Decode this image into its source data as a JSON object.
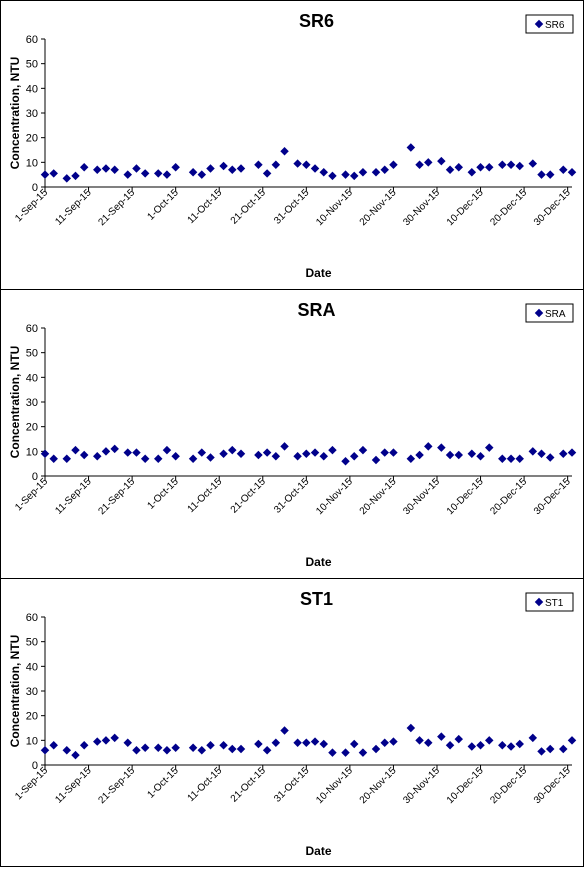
{
  "chart_data": [
    {
      "type": "scatter",
      "title": "SR6",
      "xlabel": "Date",
      "ylabel": "Concentration, NTU",
      "ylim": [
        0,
        60
      ],
      "y_ticks": [
        0,
        10,
        20,
        30,
        40,
        50,
        60
      ],
      "x_ticks": [
        "1-Sep-15",
        "11-Sep-15",
        "21-Sep-15",
        "1-Oct-15",
        "11-Oct-15",
        "21-Oct-15",
        "31-Oct-15",
        "10-Nov-15",
        "20-Nov-15",
        "30-Nov-15",
        "10-Dec-15",
        "20-Dec-15",
        "30-Dec-15"
      ],
      "xlim": [
        "2015-09-01",
        "2015-12-31"
      ],
      "legend": "top-right",
      "grid": false,
      "marker_color": "#00008B",
      "series": [
        {
          "name": "SR6",
          "points": [
            {
              "x": "2015-09-01",
              "y": 5
            },
            {
              "x": "2015-09-03",
              "y": 5.5
            },
            {
              "x": "2015-09-06",
              "y": 3.5
            },
            {
              "x": "2015-09-08",
              "y": 4.5
            },
            {
              "x": "2015-09-10",
              "y": 8
            },
            {
              "x": "2015-09-13",
              "y": 7
            },
            {
              "x": "2015-09-15",
              "y": 7.5
            },
            {
              "x": "2015-09-17",
              "y": 7
            },
            {
              "x": "2015-09-20",
              "y": 5
            },
            {
              "x": "2015-09-22",
              "y": 7.5
            },
            {
              "x": "2015-09-24",
              "y": 5.5
            },
            {
              "x": "2015-09-27",
              "y": 5.5
            },
            {
              "x": "2015-09-29",
              "y": 5
            },
            {
              "x": "2015-10-01",
              "y": 8
            },
            {
              "x": "2015-10-05",
              "y": 6
            },
            {
              "x": "2015-10-07",
              "y": 5
            },
            {
              "x": "2015-10-09",
              "y": 7.5
            },
            {
              "x": "2015-10-12",
              "y": 8.5
            },
            {
              "x": "2015-10-14",
              "y": 7
            },
            {
              "x": "2015-10-16",
              "y": 7.5
            },
            {
              "x": "2015-10-20",
              "y": 9
            },
            {
              "x": "2015-10-22",
              "y": 5.5
            },
            {
              "x": "2015-10-24",
              "y": 9
            },
            {
              "x": "2015-10-26",
              "y": 14.5
            },
            {
              "x": "2015-10-29",
              "y": 9.5
            },
            {
              "x": "2015-10-31",
              "y": 9
            },
            {
              "x": "2015-11-02",
              "y": 7.5
            },
            {
              "x": "2015-11-04",
              "y": 6
            },
            {
              "x": "2015-11-06",
              "y": 4.5
            },
            {
              "x": "2015-11-09",
              "y": 5
            },
            {
              "x": "2015-11-11",
              "y": 4.5
            },
            {
              "x": "2015-11-13",
              "y": 6
            },
            {
              "x": "2015-11-16",
              "y": 6
            },
            {
              "x": "2015-11-18",
              "y": 7
            },
            {
              "x": "2015-11-20",
              "y": 9
            },
            {
              "x": "2015-11-24",
              "y": 16
            },
            {
              "x": "2015-11-26",
              "y": 9
            },
            {
              "x": "2015-11-28",
              "y": 10
            },
            {
              "x": "2015-12-01",
              "y": 10.5
            },
            {
              "x": "2015-12-03",
              "y": 7
            },
            {
              "x": "2015-12-05",
              "y": 8
            },
            {
              "x": "2015-12-08",
              "y": 6
            },
            {
              "x": "2015-12-10",
              "y": 8
            },
            {
              "x": "2015-12-12",
              "y": 8
            },
            {
              "x": "2015-12-15",
              "y": 9
            },
            {
              "x": "2015-12-17",
              "y": 9
            },
            {
              "x": "2015-12-19",
              "y": 8.5
            },
            {
              "x": "2015-12-22",
              "y": 9.5
            },
            {
              "x": "2015-12-24",
              "y": 5
            },
            {
              "x": "2015-12-26",
              "y": 5
            },
            {
              "x": "2015-12-29",
              "y": 7
            },
            {
              "x": "2015-12-31",
              "y": 6
            }
          ]
        }
      ]
    },
    {
      "type": "scatter",
      "title": "SRA",
      "xlabel": "Date",
      "ylabel": "Concentration, NTU",
      "ylim": [
        0,
        60
      ],
      "y_ticks": [
        0,
        10,
        20,
        30,
        40,
        50,
        60
      ],
      "x_ticks": [
        "1-Sep-15",
        "11-Sep-15",
        "21-Sep-15",
        "1-Oct-15",
        "11-Oct-15",
        "21-Oct-15",
        "31-Oct-15",
        "10-Nov-15",
        "20-Nov-15",
        "30-Nov-15",
        "10-Dec-15",
        "20-Dec-15",
        "30-Dec-15"
      ],
      "xlim": [
        "2015-09-01",
        "2015-12-31"
      ],
      "legend": "top-right",
      "grid": false,
      "marker_color": "#00008B",
      "series": [
        {
          "name": "SRA",
          "points": [
            {
              "x": "2015-09-01",
              "y": 9
            },
            {
              "x": "2015-09-03",
              "y": 7
            },
            {
              "x": "2015-09-06",
              "y": 7
            },
            {
              "x": "2015-09-08",
              "y": 10.5
            },
            {
              "x": "2015-09-10",
              "y": 8.5
            },
            {
              "x": "2015-09-13",
              "y": 8
            },
            {
              "x": "2015-09-15",
              "y": 10
            },
            {
              "x": "2015-09-17",
              "y": 11
            },
            {
              "x": "2015-09-20",
              "y": 9.5
            },
            {
              "x": "2015-09-22",
              "y": 9.5
            },
            {
              "x": "2015-09-24",
              "y": 7
            },
            {
              "x": "2015-09-27",
              "y": 7
            },
            {
              "x": "2015-09-29",
              "y": 10.5
            },
            {
              "x": "2015-10-01",
              "y": 8
            },
            {
              "x": "2015-10-05",
              "y": 7
            },
            {
              "x": "2015-10-07",
              "y": 9.5
            },
            {
              "x": "2015-10-09",
              "y": 7.5
            },
            {
              "x": "2015-10-12",
              "y": 9
            },
            {
              "x": "2015-10-14",
              "y": 10.5
            },
            {
              "x": "2015-10-16",
              "y": 9
            },
            {
              "x": "2015-10-20",
              "y": 8.5
            },
            {
              "x": "2015-10-22",
              "y": 9.5
            },
            {
              "x": "2015-10-24",
              "y": 8
            },
            {
              "x": "2015-10-26",
              "y": 12
            },
            {
              "x": "2015-10-29",
              "y": 8
            },
            {
              "x": "2015-10-31",
              "y": 9
            },
            {
              "x": "2015-11-02",
              "y": 9.5
            },
            {
              "x": "2015-11-04",
              "y": 8
            },
            {
              "x": "2015-11-06",
              "y": 10.5
            },
            {
              "x": "2015-11-09",
              "y": 6
            },
            {
              "x": "2015-11-11",
              "y": 8
            },
            {
              "x": "2015-11-13",
              "y": 10.5
            },
            {
              "x": "2015-11-16",
              "y": 6.5
            },
            {
              "x": "2015-11-18",
              "y": 9.5
            },
            {
              "x": "2015-11-20",
              "y": 9.5
            },
            {
              "x": "2015-11-24",
              "y": 7
            },
            {
              "x": "2015-11-26",
              "y": 8.5
            },
            {
              "x": "2015-11-28",
              "y": 12
            },
            {
              "x": "2015-12-01",
              "y": 11.5
            },
            {
              "x": "2015-12-03",
              "y": 8.5
            },
            {
              "x": "2015-12-05",
              "y": 8.5
            },
            {
              "x": "2015-12-08",
              "y": 9
            },
            {
              "x": "2015-12-10",
              "y": 8
            },
            {
              "x": "2015-12-12",
              "y": 11.5
            },
            {
              "x": "2015-12-15",
              "y": 7
            },
            {
              "x": "2015-12-17",
              "y": 7
            },
            {
              "x": "2015-12-19",
              "y": 7
            },
            {
              "x": "2015-12-22",
              "y": 10
            },
            {
              "x": "2015-12-24",
              "y": 9
            },
            {
              "x": "2015-12-26",
              "y": 7.5
            },
            {
              "x": "2015-12-29",
              "y": 9
            },
            {
              "x": "2015-12-31",
              "y": 9.5
            }
          ]
        }
      ]
    },
    {
      "type": "scatter",
      "title": "ST1",
      "xlabel": "Date",
      "ylabel": "Concentration, NTU",
      "ylim": [
        0,
        60
      ],
      "y_ticks": [
        0,
        10,
        20,
        30,
        40,
        50,
        60
      ],
      "x_ticks": [
        "1-Sep-15",
        "11-Sep-15",
        "21-Sep-15",
        "1-Oct-15",
        "11-Oct-15",
        "21-Oct-15",
        "31-Oct-15",
        "10-Nov-15",
        "20-Nov-15",
        "30-Nov-15",
        "10-Dec-15",
        "20-Dec-15",
        "30-Dec-15"
      ],
      "xlim": [
        "2015-09-01",
        "2015-12-31"
      ],
      "legend": "top-right",
      "grid": false,
      "marker_color": "#00008B",
      "series": [
        {
          "name": "ST1",
          "points": [
            {
              "x": "2015-09-01",
              "y": 6
            },
            {
              "x": "2015-09-03",
              "y": 8
            },
            {
              "x": "2015-09-06",
              "y": 6
            },
            {
              "x": "2015-09-08",
              "y": 4
            },
            {
              "x": "2015-09-10",
              "y": 8
            },
            {
              "x": "2015-09-13",
              "y": 9.5
            },
            {
              "x": "2015-09-15",
              "y": 10
            },
            {
              "x": "2015-09-17",
              "y": 11
            },
            {
              "x": "2015-09-20",
              "y": 9
            },
            {
              "x": "2015-09-22",
              "y": 6
            },
            {
              "x": "2015-09-24",
              "y": 7
            },
            {
              "x": "2015-09-27",
              "y": 7
            },
            {
              "x": "2015-09-29",
              "y": 6
            },
            {
              "x": "2015-10-01",
              "y": 7
            },
            {
              "x": "2015-10-05",
              "y": 7
            },
            {
              "x": "2015-10-07",
              "y": 6
            },
            {
              "x": "2015-10-09",
              "y": 8
            },
            {
              "x": "2015-10-12",
              "y": 8
            },
            {
              "x": "2015-10-14",
              "y": 6.5
            },
            {
              "x": "2015-10-16",
              "y": 6.5
            },
            {
              "x": "2015-10-20",
              "y": 8.5
            },
            {
              "x": "2015-10-22",
              "y": 6
            },
            {
              "x": "2015-10-24",
              "y": 9
            },
            {
              "x": "2015-10-26",
              "y": 14
            },
            {
              "x": "2015-10-29",
              "y": 9
            },
            {
              "x": "2015-10-31",
              "y": 9
            },
            {
              "x": "2015-11-02",
              "y": 9.5
            },
            {
              "x": "2015-11-04",
              "y": 8.5
            },
            {
              "x": "2015-11-06",
              "y": 5
            },
            {
              "x": "2015-11-09",
              "y": 5
            },
            {
              "x": "2015-11-11",
              "y": 8.5
            },
            {
              "x": "2015-11-13",
              "y": 5
            },
            {
              "x": "2015-11-16",
              "y": 6.5
            },
            {
              "x": "2015-11-18",
              "y": 9
            },
            {
              "x": "2015-11-20",
              "y": 9.5
            },
            {
              "x": "2015-11-24",
              "y": 15
            },
            {
              "x": "2015-11-26",
              "y": 10
            },
            {
              "x": "2015-11-28",
              "y": 9
            },
            {
              "x": "2015-12-01",
              "y": 11.5
            },
            {
              "x": "2015-12-03",
              "y": 8
            },
            {
              "x": "2015-12-05",
              "y": 10.5
            },
            {
              "x": "2015-12-08",
              "y": 7.5
            },
            {
              "x": "2015-12-10",
              "y": 8
            },
            {
              "x": "2015-12-12",
              "y": 10
            },
            {
              "x": "2015-12-15",
              "y": 8
            },
            {
              "x": "2015-12-17",
              "y": 7.5
            },
            {
              "x": "2015-12-19",
              "y": 8.5
            },
            {
              "x": "2015-12-22",
              "y": 11
            },
            {
              "x": "2015-12-24",
              "y": 5.5
            },
            {
              "x": "2015-12-26",
              "y": 6.5
            },
            {
              "x": "2015-12-29",
              "y": 6.5
            },
            {
              "x": "2015-12-31",
              "y": 10
            }
          ]
        }
      ]
    }
  ]
}
